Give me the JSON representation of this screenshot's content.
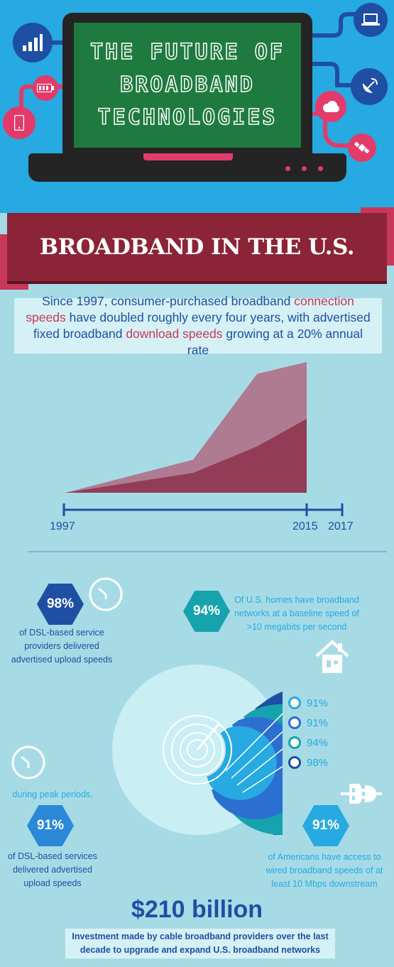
{
  "header": {
    "title_lines": [
      "THE FUTURE OF",
      "BROADBAND",
      "TECHNOLOGIES"
    ],
    "icons": [
      "bar-chart-icon",
      "battery-icon",
      "phone-icon",
      "laptop-icon",
      "satellite-dish-icon",
      "cloud-icon",
      "satellite-icon"
    ]
  },
  "banner": {
    "title": "BROADBAND IN THE U.S."
  },
  "intro": {
    "part1": "Since 1997, consumer-purchased broadband ",
    "hl1": "connection speeds",
    "part2": " have doubled roughly every four years, with advertised fixed broadband ",
    "hl2": "download speeds",
    "part3": " growing at a 20% annual rate"
  },
  "chart_data": {
    "type": "area",
    "x_labels": [
      "1997",
      "2015",
      "2017"
    ],
    "series": [
      {
        "values": [
          0,
          0.25,
          0.9,
          0.99
        ]
      },
      {
        "values": [
          0,
          0.15,
          0.35,
          0.56
        ]
      }
    ]
  },
  "stats": {
    "dsl_upload": {
      "value": "98%",
      "text": "of DSL-based service providers delivered advertised upload speeds"
    },
    "homes": {
      "value": "94%",
      "text": "Of U.S. homes have broadband networks at a baseline speed of >10 megabits per second"
    },
    "peak": {
      "prefix": "during peak periods,",
      "value": "91%",
      "text": "of DSL-based services delivered advertised upload speeds"
    },
    "americans": {
      "value": "91%",
      "text": "of Americans have access to wired broadband speeds of at least 10 Mbps downstream"
    }
  },
  "radial": {
    "legend": [
      {
        "value": "91%",
        "color": "#27a9e1"
      },
      {
        "value": "91%",
        "color": "#2b6fd1"
      },
      {
        "value": "94%",
        "color": "#16a3ad"
      },
      {
        "value": "98%",
        "color": "#1e4fa3"
      }
    ]
  },
  "investment": {
    "amount": "$210 billion",
    "text": "Investment made by cable broadband providers over the last decade to upgrade and expand U.S. broadband networks"
  }
}
